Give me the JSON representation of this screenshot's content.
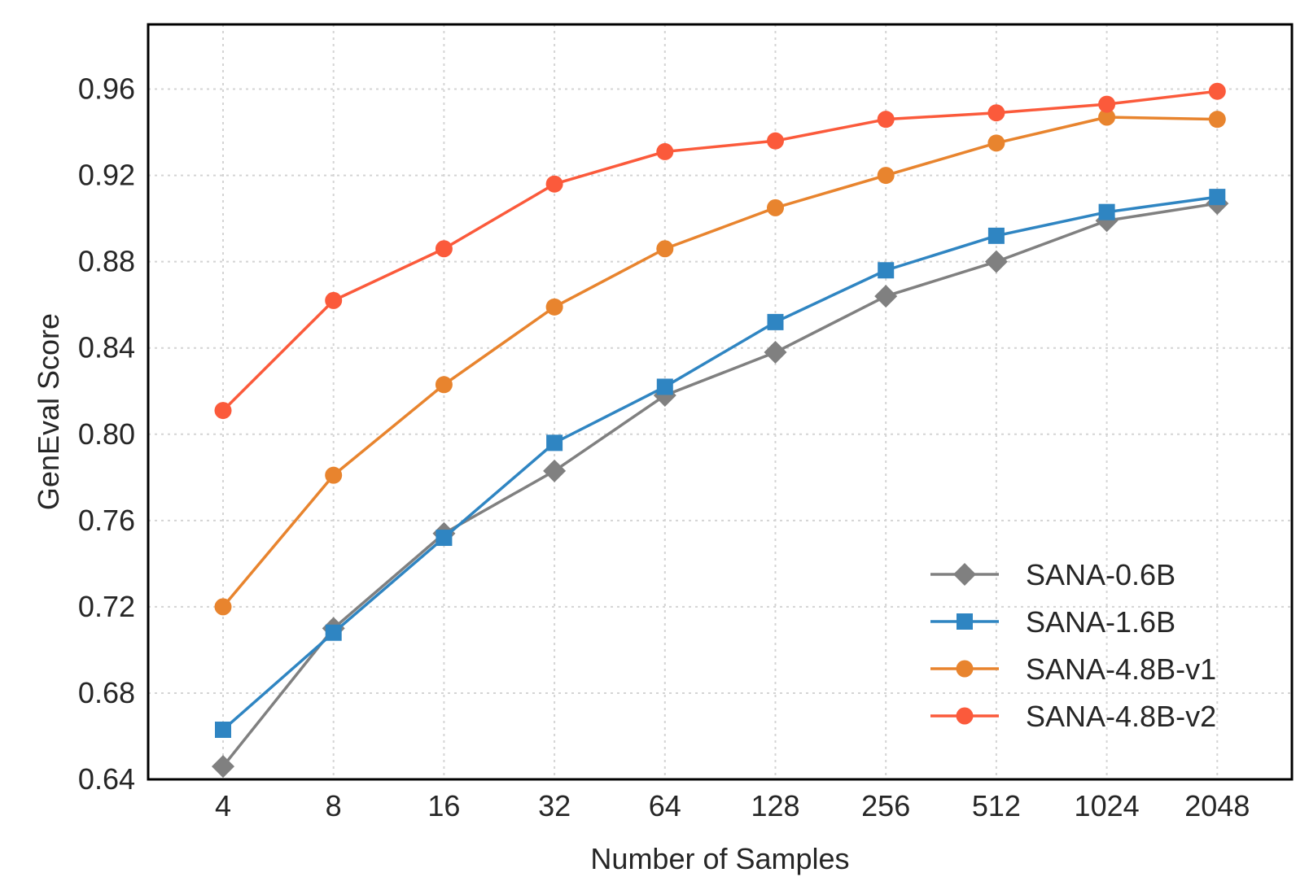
{
  "chart_data": {
    "type": "line",
    "title": "",
    "xlabel": "Number of Samples",
    "ylabel": "GenEval Score",
    "x_scale": "log2",
    "categories": [
      "4",
      "8",
      "16",
      "32",
      "64",
      "128",
      "256",
      "512",
      "1024",
      "2048"
    ],
    "yticks": [
      "0.64",
      "0.68",
      "0.72",
      "0.76",
      "0.80",
      "0.84",
      "0.88",
      "0.92",
      "0.96"
    ],
    "ylim": [
      0.64,
      0.99
    ],
    "grid": true,
    "legend_position": "lower-right",
    "series": [
      {
        "name": "SANA-0.6B",
        "color": "#808080",
        "marker": "diamond",
        "values": [
          0.646,
          0.71,
          0.754,
          0.783,
          0.818,
          0.838,
          0.864,
          0.88,
          0.899,
          0.907
        ]
      },
      {
        "name": "SANA-1.6B",
        "color": "#2f85c2",
        "marker": "square",
        "values": [
          0.663,
          0.708,
          0.752,
          0.796,
          0.822,
          0.852,
          0.876,
          0.892,
          0.903,
          0.91
        ]
      },
      {
        "name": "SANA-4.8B-v1",
        "color": "#e8842e",
        "marker": "circle",
        "values": [
          0.72,
          0.781,
          0.823,
          0.859,
          0.886,
          0.905,
          0.92,
          0.935,
          0.947,
          0.946
        ]
      },
      {
        "name": "SANA-4.8B-v2",
        "color": "#fb5a3b",
        "marker": "circle",
        "values": [
          0.811,
          0.862,
          0.886,
          0.916,
          0.931,
          0.936,
          0.946,
          0.949,
          0.953,
          0.959
        ]
      }
    ]
  }
}
